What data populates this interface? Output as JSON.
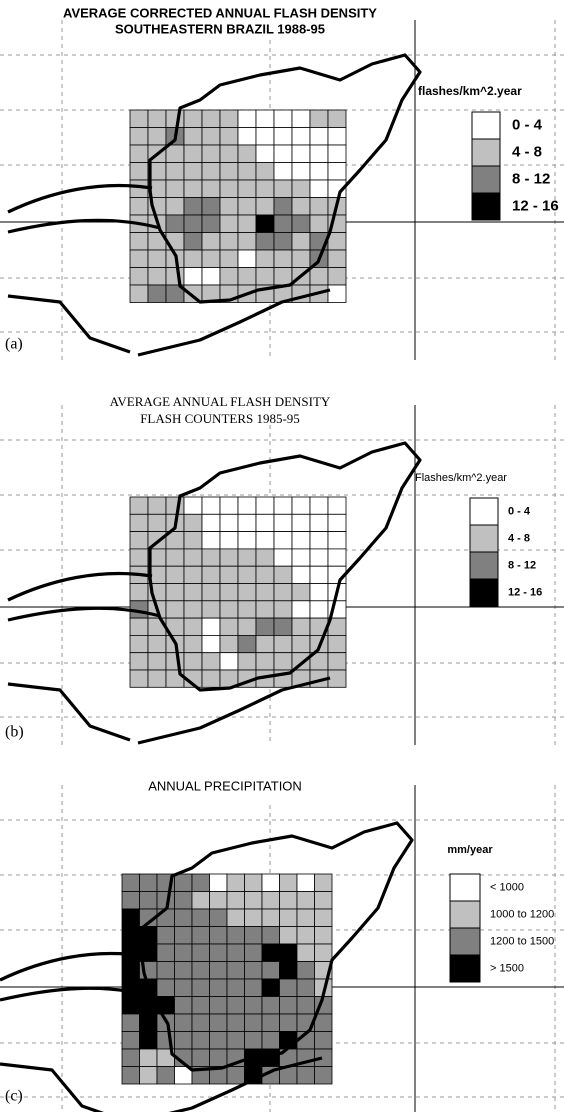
{
  "panels": [
    {
      "label": "(a)",
      "title": [
        "AVERAGE CORRECTED ANNUAL FLASH DENSITY",
        "SOUTHEASTERN BRAZIL 1988-95"
      ],
      "legend_title": "flashes/km^2.year",
      "legend": [
        "0 - 4",
        "4 - 8",
        "8 - 12",
        "12 - 16"
      ],
      "legend_colors": [
        "#ffffff",
        "#c0c0c0",
        "#808080",
        "#000000"
      ],
      "cells": [
        [
          1,
          1,
          1,
          1,
          1,
          1,
          0,
          0,
          0,
          0,
          1,
          1
        ],
        [
          1,
          1,
          2,
          1,
          1,
          1,
          0,
          0,
          0,
          0,
          0,
          0
        ],
        [
          1,
          1,
          1,
          1,
          1,
          1,
          1,
          0,
          0,
          0,
          0,
          0
        ],
        [
          1,
          1,
          1,
          1,
          1,
          1,
          1,
          1,
          0,
          0,
          0,
          0
        ],
        [
          1,
          1,
          1,
          1,
          1,
          1,
          1,
          1,
          1,
          1,
          0,
          0
        ],
        [
          1,
          1,
          1,
          2,
          2,
          1,
          1,
          1,
          2,
          1,
          1,
          1
        ],
        [
          1,
          1,
          2,
          2,
          2,
          1,
          1,
          3,
          2,
          2,
          1,
          1
        ],
        [
          1,
          1,
          1,
          2,
          1,
          1,
          1,
          2,
          2,
          1,
          2,
          1
        ],
        [
          1,
          1,
          1,
          1,
          1,
          1,
          0,
          1,
          1,
          1,
          2,
          1
        ],
        [
          1,
          1,
          1,
          0,
          0,
          1,
          1,
          1,
          1,
          1,
          1,
          1
        ],
        [
          1,
          2,
          2,
          1,
          1,
          1,
          1,
          1,
          1,
          1,
          1,
          0
        ]
      ]
    },
    {
      "label": "(b)",
      "title": [
        "AVERAGE ANNUAL FLASH DENSITY",
        "FLASH COUNTERS 1985-95"
      ],
      "legend_title": "Flashes/km^2.year",
      "legend": [
        "0 - 4",
        "4 - 8",
        "8 - 12",
        "12 - 16"
      ],
      "legend_colors": [
        "#ffffff",
        "#c0c0c0",
        "#808080",
        "#000000"
      ],
      "cells": [
        [
          1,
          1,
          1,
          0,
          0,
          0,
          0,
          0,
          0,
          0,
          0,
          0
        ],
        [
          1,
          1,
          1,
          1,
          0,
          0,
          0,
          0,
          0,
          0,
          0,
          0
        ],
        [
          1,
          1,
          1,
          1,
          0,
          0,
          0,
          0,
          0,
          0,
          0,
          0
        ],
        [
          1,
          1,
          1,
          1,
          1,
          1,
          1,
          1,
          0,
          0,
          0,
          0
        ],
        [
          1,
          1,
          1,
          1,
          1,
          1,
          1,
          1,
          1,
          0,
          0,
          0
        ],
        [
          1,
          1,
          1,
          1,
          1,
          1,
          1,
          1,
          1,
          1,
          0,
          0
        ],
        [
          2,
          1,
          1,
          1,
          1,
          1,
          1,
          1,
          1,
          0,
          0,
          0
        ],
        [
          1,
          1,
          1,
          1,
          0,
          1,
          1,
          2,
          2,
          1,
          1,
          1
        ],
        [
          1,
          1,
          1,
          1,
          0,
          1,
          2,
          1,
          1,
          1,
          1,
          1
        ],
        [
          1,
          1,
          1,
          1,
          1,
          0,
          1,
          1,
          1,
          1,
          1,
          1
        ],
        [
          1,
          1,
          1,
          1,
          1,
          1,
          1,
          1,
          1,
          1,
          1,
          1
        ]
      ]
    },
    {
      "label": "(c)",
      "title": [
        "ANNUAL PRECIPITATION"
      ],
      "legend_title": "mm/year",
      "legend": [
        "< 1000",
        "1000 to 1200",
        "1200 to 1500",
        "> 1500"
      ],
      "legend_colors": [
        "#ffffff",
        "#c0c0c0",
        "#808080",
        "#000000"
      ],
      "cells": [
        [
          2,
          2,
          2,
          2,
          2,
          0,
          1,
          1,
          0,
          1,
          0,
          1
        ],
        [
          2,
          2,
          2,
          2,
          1,
          1,
          1,
          1,
          1,
          1,
          1,
          1
        ],
        [
          3,
          2,
          2,
          2,
          2,
          2,
          1,
          1,
          1,
          1,
          1,
          1
        ],
        [
          3,
          3,
          2,
          2,
          2,
          2,
          2,
          2,
          2,
          1,
          1,
          1
        ],
        [
          3,
          3,
          2,
          2,
          2,
          2,
          2,
          2,
          3,
          3,
          1,
          1
        ],
        [
          3,
          2,
          2,
          2,
          2,
          2,
          2,
          2,
          2,
          3,
          2,
          1
        ],
        [
          3,
          3,
          2,
          2,
          2,
          2,
          2,
          2,
          3,
          2,
          2,
          1
        ],
        [
          3,
          3,
          3,
          2,
          2,
          2,
          2,
          2,
          2,
          2,
          2,
          2
        ],
        [
          2,
          3,
          2,
          2,
          2,
          2,
          2,
          2,
          2,
          2,
          2,
          2
        ],
        [
          2,
          3,
          2,
          2,
          2,
          2,
          2,
          2,
          2,
          3,
          2,
          2
        ],
        [
          2,
          1,
          1,
          2,
          2,
          2,
          2,
          3,
          3,
          2,
          2,
          2
        ],
        [
          2,
          1,
          2,
          0,
          2,
          2,
          2,
          3,
          2,
          2,
          2,
          2
        ]
      ]
    }
  ]
}
